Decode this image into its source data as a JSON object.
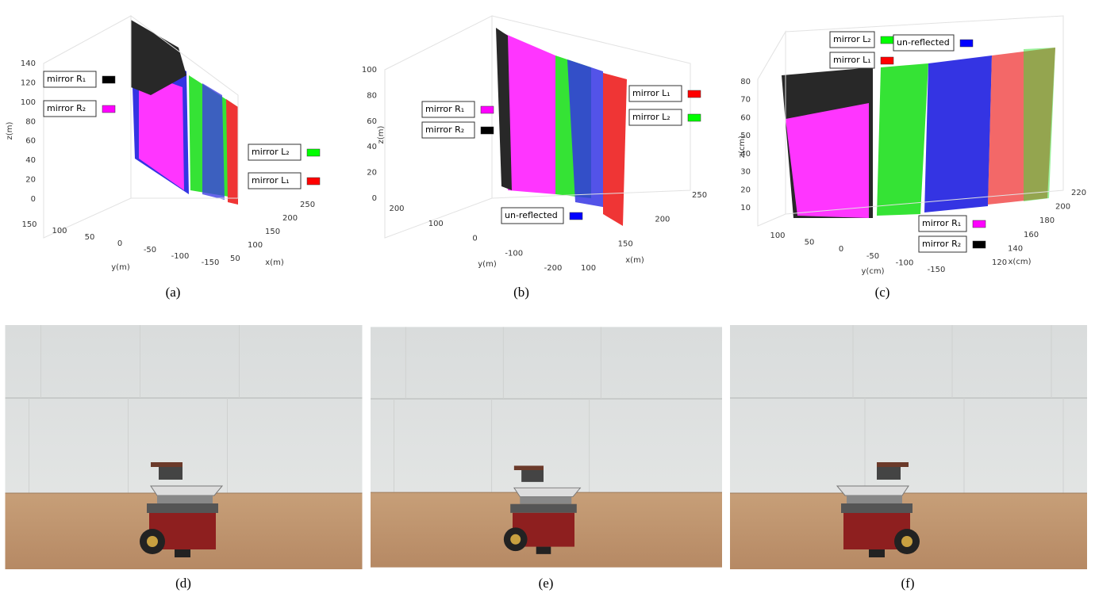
{
  "figures": [
    {
      "caption": "(a)",
      "z_label": "z(m)",
      "y_label": "y(m)",
      "x_label": "x(m)",
      "z_ticks": [
        140,
        120,
        100,
        80,
        60,
        40,
        20,
        0
      ],
      "y_ticks": [
        150,
        100,
        50,
        0,
        -50,
        -100,
        -150
      ],
      "x_ticks": [
        50,
        100,
        150,
        200,
        250
      ],
      "legend": [
        {
          "label": "mirror R₁",
          "color": "#000000"
        },
        {
          "label": "mirror R₂",
          "color": "#ff00ff"
        },
        {
          "label": "mirror L₂",
          "color": "#00ff00"
        },
        {
          "label": "mirror L₁",
          "color": "#ff0000"
        }
      ]
    },
    {
      "caption": "(b)",
      "z_label": "z(m)",
      "y_label": "y(m)",
      "x_label": "x(m)",
      "z_ticks": [
        100,
        80,
        60,
        40,
        20,
        0
      ],
      "y_ticks": [
        200,
        100,
        0,
        -100,
        -200
      ],
      "x_ticks": [
        100,
        150,
        200,
        250
      ],
      "legend": [
        {
          "label": "mirror R₁",
          "color": "#ff00ff"
        },
        {
          "label": "mirror R₂",
          "color": "#000000"
        },
        {
          "label": "mirror L₁",
          "color": "#ff0000"
        },
        {
          "label": "mirror L₂",
          "color": "#00ff00"
        },
        {
          "label": "un-reflected",
          "color": "#0000ff"
        }
      ]
    },
    {
      "caption": "(c)",
      "z_label": "z(cm)",
      "y_label": "y(cm)",
      "x_label": "x(cm)",
      "z_ticks": [
        80,
        70,
        60,
        50,
        40,
        30,
        20,
        10
      ],
      "y_ticks": [
        100,
        50,
        0,
        -50,
        -100,
        -150
      ],
      "x_ticks": [
        120,
        140,
        160,
        180,
        200,
        220
      ],
      "legend": [
        {
          "label": "mirror L₂",
          "color": "#00ff00"
        },
        {
          "label": "mirror L₁",
          "color": "#ff0000"
        },
        {
          "label": "un-reflected",
          "color": "#0000ff"
        },
        {
          "label": "mirror R₁",
          "color": "#ff00ff"
        },
        {
          "label": "mirror R₂",
          "color": "#000000"
        }
      ]
    }
  ],
  "photos": [
    {
      "caption": "(d)"
    },
    {
      "caption": "(e)"
    },
    {
      "caption": "(f)"
    }
  ]
}
